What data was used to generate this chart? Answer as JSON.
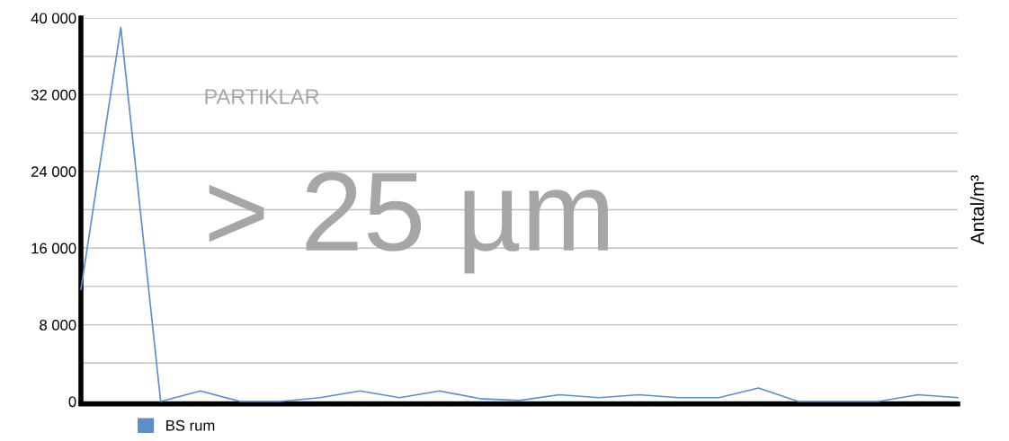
{
  "chart_data": {
    "type": "line",
    "categories": [
      null,
      null,
      null,
      null,
      null,
      null,
      null,
      null,
      null,
      null,
      null,
      null,
      null,
      null,
      null,
      null,
      null,
      null,
      null,
      null,
      null,
      null,
      null
    ],
    "series": [
      {
        "name": "BS rum",
        "color": "#5b8fcb",
        "values": [
          11700,
          39000,
          0,
          1100,
          0,
          0,
          400,
          1100,
          400,
          1100,
          300,
          100,
          700,
          400,
          700,
          400,
          400,
          1400,
          0,
          0,
          0,
          700,
          400
        ]
      }
    ],
    "ylim": [
      0,
      40000
    ],
    "yticks": [
      {
        "value": 0,
        "label": "0"
      },
      {
        "value": 4000,
        "label": null
      },
      {
        "value": 8000,
        "label": "8 000"
      },
      {
        "value": 12000,
        "label": null
      },
      {
        "value": 16000,
        "label": "16 000"
      },
      {
        "value": 20000,
        "label": null
      },
      {
        "value": 24000,
        "label": "24 000"
      },
      {
        "value": 28000,
        "label": null
      },
      {
        "value": 32000,
        "label": "32 000"
      },
      {
        "value": 36000,
        "label": null
      },
      {
        "value": 40000,
        "label": "40 000"
      }
    ],
    "ylabel": "Antal/m³",
    "annotations": [
      "PARTIKLAR",
      "> 25 µm"
    ],
    "grid": "y",
    "legend": "bottom left",
    "marker": "none",
    "line_style": "solid"
  }
}
